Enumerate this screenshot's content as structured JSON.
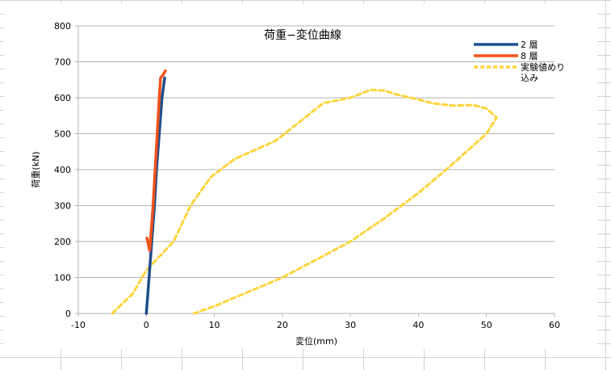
{
  "chart_data": {
    "type": "line",
    "title": "荷重−変位曲線",
    "xlabel": "変位(mm)",
    "ylabel": "荷重(kN)",
    "xlim": [
      -10,
      60
    ],
    "ylim": [
      0,
      800
    ],
    "x_ticks": [
      -10,
      0,
      10,
      20,
      30,
      40,
      50,
      60
    ],
    "y_ticks": [
      0,
      100,
      200,
      300,
      400,
      500,
      600,
      700,
      800
    ],
    "grid": "horizontal",
    "legend_position": "top-right",
    "series": [
      {
        "name": "2 層",
        "color": "#1f4e8c",
        "style": "solid",
        "points": [
          [
            0.0,
            0
          ],
          [
            0.4,
            100
          ],
          [
            0.8,
            200
          ],
          [
            1.2,
            300
          ],
          [
            1.5,
            400
          ],
          [
            1.9,
            500
          ],
          [
            2.3,
            600
          ],
          [
            2.7,
            655
          ]
        ]
      },
      {
        "name": "8 層",
        "color": "#f2511b",
        "style": "solid",
        "points": [
          [
            0.1,
            210
          ],
          [
            0.5,
            175
          ],
          [
            1.0,
            300
          ],
          [
            1.3,
            400
          ],
          [
            1.6,
            500
          ],
          [
            1.9,
            600
          ],
          [
            2.1,
            655
          ],
          [
            2.5,
            665
          ],
          [
            2.8,
            675
          ]
        ]
      },
      {
        "name": "実験値めり込み",
        "color": "#ffd43b",
        "style": "dashed",
        "points": [
          [
            -5.0,
            0
          ],
          [
            -2.0,
            55
          ],
          [
            0.0,
            120
          ],
          [
            2.0,
            160
          ],
          [
            4.0,
            200
          ],
          [
            6.5,
            300
          ],
          [
            9.5,
            380
          ],
          [
            13.0,
            430
          ],
          [
            19.0,
            480
          ],
          [
            23.0,
            540
          ],
          [
            26.0,
            585
          ],
          [
            30.0,
            600
          ],
          [
            33.0,
            622
          ],
          [
            35.0,
            620
          ],
          [
            37.0,
            608
          ],
          [
            40.0,
            595
          ],
          [
            42.0,
            585
          ],
          [
            45.0,
            578
          ],
          [
            48.0,
            580
          ],
          [
            50.0,
            570
          ],
          [
            51.5,
            545
          ],
          [
            50.0,
            500
          ],
          [
            45.0,
            415
          ],
          [
            40.0,
            335
          ],
          [
            35.0,
            265
          ],
          [
            30.0,
            200
          ],
          [
            25.0,
            150
          ],
          [
            20.0,
            100
          ],
          [
            15.0,
            60
          ],
          [
            10.0,
            20
          ],
          [
            7.0,
            0
          ]
        ]
      }
    ]
  }
}
